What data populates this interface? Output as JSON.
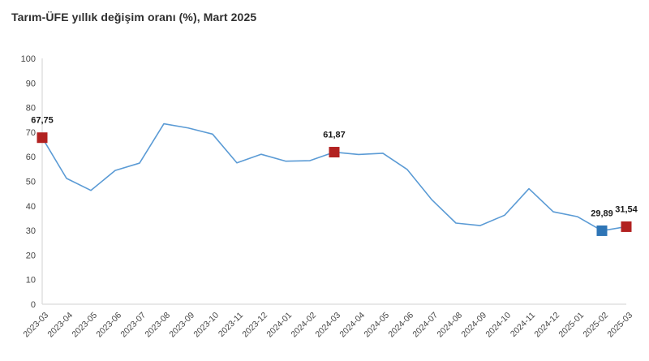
{
  "title": "Tarım-ÜFE yıllık değişim oranı (%), Mart 2025",
  "chart_data": {
    "type": "line",
    "title": "Tarım-ÜFE yıllık değişim oranı (%), Mart 2025",
    "xlabel": "",
    "ylabel": "",
    "ylim": [
      0,
      100
    ],
    "ytick_step": 10,
    "yticks": [
      0,
      10,
      20,
      30,
      40,
      50,
      60,
      70,
      80,
      90,
      100
    ],
    "grid": "single light vertical gridline at first category; light bottom axis line",
    "legend_position": "none",
    "categories": [
      "2023-03",
      "2023-04",
      "2023-05",
      "2023-06",
      "2023-07",
      "2023-08",
      "2023-09",
      "2023-10",
      "2023-11",
      "2023-12",
      "2024-01",
      "2024-02",
      "2024-03",
      "2024-04",
      "2024-05",
      "2024-06",
      "2024-07",
      "2024-08",
      "2024-09",
      "2024-10",
      "2024-11",
      "2024-12",
      "2025-01",
      "2025-02",
      "2025-03"
    ],
    "values": [
      67.75,
      51.2,
      46.3,
      54.4,
      57.4,
      73.4,
      71.7,
      69.2,
      57.5,
      61.0,
      58.2,
      58.4,
      61.87,
      60.9,
      61.4,
      54.8,
      42.6,
      33.0,
      32.0,
      36.2,
      47.0,
      37.6,
      35.6,
      29.89,
      31.54
    ],
    "labeled_points": [
      {
        "index": 0,
        "label": "67,75",
        "marker_color": "#b22120"
      },
      {
        "index": 12,
        "label": "61,87",
        "marker_color": "#b22120"
      },
      {
        "index": 23,
        "label": "29,89",
        "marker_color": "#2e75b6"
      },
      {
        "index": 24,
        "label": "31,54",
        "marker_color": "#b22120"
      }
    ],
    "colors": {
      "line": "#5b9bd5",
      "marker_red": "#b22120",
      "marker_blue": "#2e75b6",
      "axis_line": "#d9d9d9",
      "gridline": "#dcdcdc",
      "tick_text": "#454545",
      "title_text": "#2f2f2f",
      "data_label_text": "#1a1a1a"
    }
  }
}
